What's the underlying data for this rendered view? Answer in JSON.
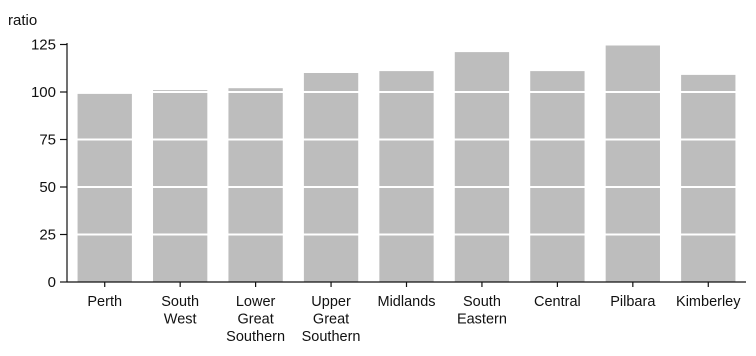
{
  "chart_data": {
    "type": "bar",
    "ylabel": "ratio",
    "ylim": [
      0,
      125
    ],
    "yticks": [
      "0",
      "25",
      "50",
      "75",
      "100",
      "125"
    ],
    "grid": "horizontal white gridlines drawn over bars",
    "bar_color": "#bdbdbd",
    "categories": [
      [
        "Perth"
      ],
      [
        "South",
        "West"
      ],
      [
        "Lower",
        "Great",
        "Southern"
      ],
      [
        "Upper",
        "Great",
        "Southern"
      ],
      [
        "Midlands"
      ],
      [
        "South",
        "Eastern"
      ],
      [
        "Central"
      ],
      [
        "Pilbara"
      ],
      [
        "Kimberley"
      ]
    ],
    "values": [
      99,
      101,
      102,
      110,
      111,
      121,
      111,
      125,
      109
    ]
  }
}
